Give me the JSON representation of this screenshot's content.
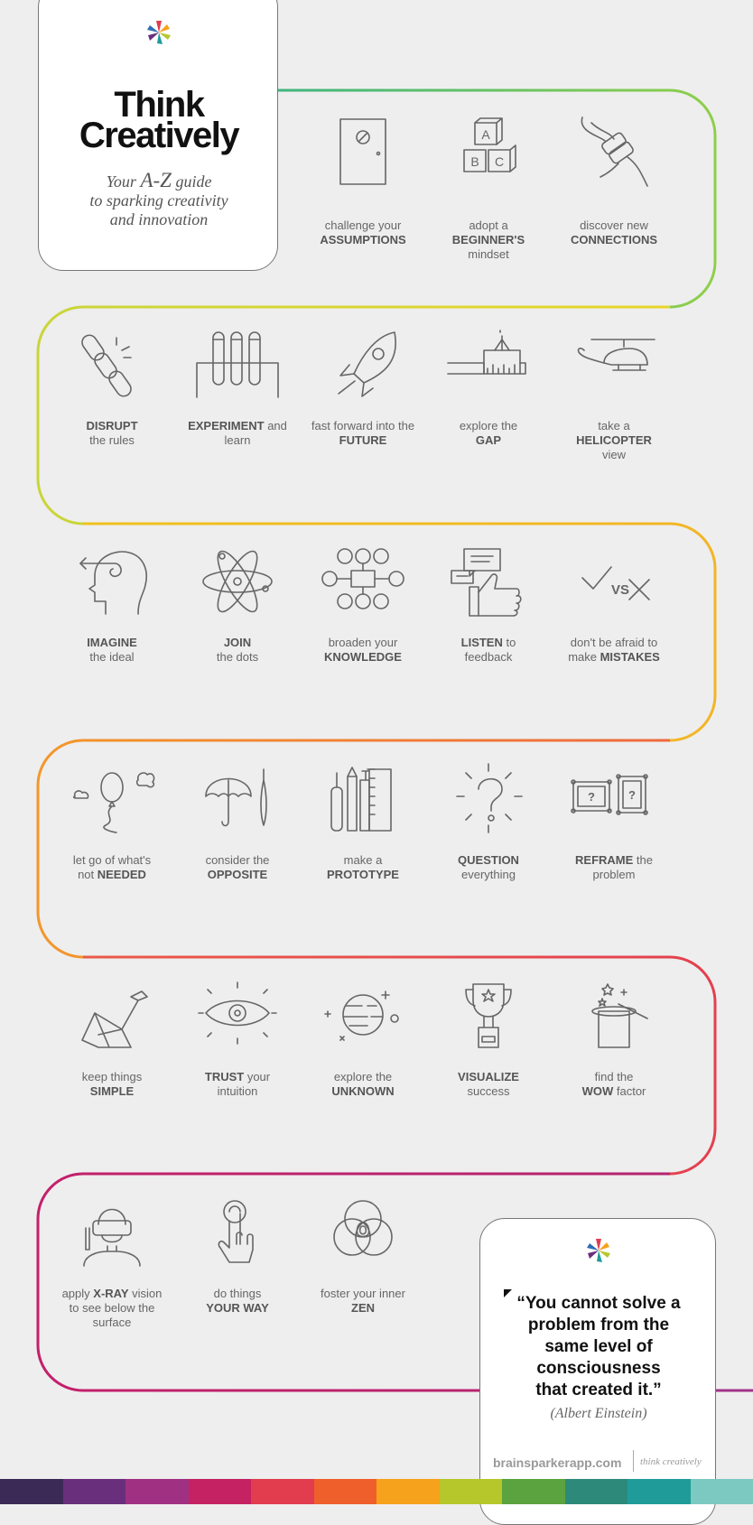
{
  "header": {
    "title_line1": "Think",
    "title_line2": "Creatively",
    "subtitle_pre": "Your",
    "subtitle_az": "A-Z",
    "subtitle_post": "guide",
    "subtitle_line2": "to sparking creativity",
    "subtitle_line3": "and innovation"
  },
  "items": [
    {
      "icon": "door-icon",
      "l1": [
        [
          "challenge your",
          ""
        ]
      ],
      "l2": [
        [
          "ASSUMPTIONS",
          "b"
        ]
      ],
      "l3": []
    },
    {
      "icon": "abc-blocks-icon",
      "l1": [
        [
          "adopt a",
          ""
        ]
      ],
      "l2": [
        [
          "BEGINNER'S",
          "b"
        ]
      ],
      "l3": [
        [
          "mindset",
          ""
        ]
      ]
    },
    {
      "icon": "cables-icon",
      "l1": [
        [
          "discover new",
          ""
        ]
      ],
      "l2": [
        [
          "CONNECTIONS",
          "b"
        ]
      ],
      "l3": []
    },
    {
      "icon": "broken-chain-icon",
      "l1": [
        [
          "DISRUPT",
          "b"
        ]
      ],
      "l2": [
        [
          "the rules",
          ""
        ]
      ],
      "l3": []
    },
    {
      "icon": "test-tubes-icon",
      "l1": [
        [
          "EXPERIMENT",
          "b"
        ],
        [
          " and",
          ""
        ]
      ],
      "l2": [
        [
          "learn",
          ""
        ]
      ],
      "l3": []
    },
    {
      "icon": "rocket-icon",
      "l1": [
        [
          "fast forward into the",
          ""
        ]
      ],
      "l2": [
        [
          "FUTURE",
          "b"
        ]
      ],
      "l3": []
    },
    {
      "icon": "ruler-gap-icon",
      "l1": [
        [
          "explore the",
          ""
        ]
      ],
      "l2": [
        [
          "GAP",
          "b"
        ]
      ],
      "l3": []
    },
    {
      "icon": "helicopter-icon",
      "l1": [
        [
          "take a",
          ""
        ]
      ],
      "l2": [
        [
          "HELICOPTER",
          "b"
        ]
      ],
      "l3": [
        [
          "view",
          ""
        ]
      ]
    },
    {
      "icon": "head-arrow-icon",
      "l1": [
        [
          "IMAGINE",
          "b"
        ]
      ],
      "l2": [
        [
          "the ideal",
          ""
        ]
      ],
      "l3": []
    },
    {
      "icon": "atom-icon",
      "l1": [
        [
          "JOIN",
          "b"
        ]
      ],
      "l2": [
        [
          "the dots",
          ""
        ]
      ],
      "l3": []
    },
    {
      "icon": "network-icon",
      "l1": [
        [
          "broaden your",
          ""
        ]
      ],
      "l2": [
        [
          "KNOWLEDGE",
          "b"
        ]
      ],
      "l3": []
    },
    {
      "icon": "thumbs-up-icon",
      "l1": [
        [
          "LISTEN",
          "b"
        ],
        [
          " to",
          ""
        ]
      ],
      "l2": [
        [
          "feedback",
          ""
        ]
      ],
      "l3": []
    },
    {
      "icon": "check-vs-cross-icon",
      "l1": [
        [
          "don't be afraid to",
          ""
        ]
      ],
      "l2": [
        [
          "make ",
          ""
        ],
        [
          "MISTAKES",
          "b"
        ]
      ],
      "l3": []
    },
    {
      "icon": "balloon-icon",
      "l1": [
        [
          "let go of what's",
          ""
        ]
      ],
      "l2": [
        [
          "not ",
          ""
        ],
        [
          "NEEDED",
          "b"
        ]
      ],
      "l3": []
    },
    {
      "icon": "umbrella-icon",
      "l1": [
        [
          "consider the",
          ""
        ]
      ],
      "l2": [
        [
          "OPPOSITE",
          "b"
        ]
      ],
      "l3": []
    },
    {
      "icon": "drawing-tools-icon",
      "l1": [
        [
          "make a",
          ""
        ]
      ],
      "l2": [
        [
          "PROTOTYPE",
          "b"
        ]
      ],
      "l3": []
    },
    {
      "icon": "question-mark-icon",
      "l1": [
        [
          "QUESTION",
          "b"
        ]
      ],
      "l2": [
        [
          "everything",
          ""
        ]
      ],
      "l3": []
    },
    {
      "icon": "picture-frames-icon",
      "l1": [
        [
          "REFRAME",
          "b"
        ],
        [
          " the",
          ""
        ]
      ],
      "l2": [
        [
          "problem",
          ""
        ]
      ],
      "l3": []
    },
    {
      "icon": "origami-swan-icon",
      "l1": [
        [
          "keep things",
          ""
        ]
      ],
      "l2": [
        [
          "SIMPLE",
          "b"
        ]
      ],
      "l3": []
    },
    {
      "icon": "eye-icon",
      "l1": [
        [
          "TRUST",
          "b"
        ],
        [
          " your",
          ""
        ]
      ],
      "l2": [
        [
          "intuition",
          ""
        ]
      ],
      "l3": []
    },
    {
      "icon": "planet-icon",
      "l1": [
        [
          "explore the",
          ""
        ]
      ],
      "l2": [
        [
          "UNKNOWN",
          "b"
        ]
      ],
      "l3": []
    },
    {
      "icon": "trophy-icon",
      "l1": [
        [
          "VISUALIZE",
          "b"
        ]
      ],
      "l2": [
        [
          "success",
          ""
        ]
      ],
      "l3": []
    },
    {
      "icon": "magic-hat-icon",
      "l1": [
        [
          "find the",
          ""
        ]
      ],
      "l2": [
        [
          "WOW",
          "b"
        ],
        [
          " factor",
          ""
        ]
      ],
      "l3": []
    },
    {
      "icon": "vr-headset-icon",
      "l1": [
        [
          "apply ",
          ""
        ],
        [
          "X-RAY",
          "b"
        ],
        [
          " vision",
          ""
        ]
      ],
      "l2": [
        [
          "to see below the",
          ""
        ]
      ],
      "l3": [
        [
          "surface",
          ""
        ]
      ]
    },
    {
      "icon": "finger-press-icon",
      "l1": [
        [
          "do things",
          ""
        ]
      ],
      "l2": [
        [
          "YOUR WAY",
          "b"
        ]
      ],
      "l3": []
    },
    {
      "icon": "zen-circles-icon",
      "l1": [
        [
          "foster your inner",
          ""
        ]
      ],
      "l2": [
        [
          "ZEN",
          "b"
        ]
      ],
      "l3": []
    }
  ],
  "quote": {
    "line1": "“You cannot solve a",
    "line2": "problem from the",
    "line3": "same level of",
    "line4": "consciousness",
    "line5": "that created it.”",
    "author": "(Albert Einstein)"
  },
  "footer": {
    "site": "brainsparkerapp.com",
    "tagline": "think creatively"
  },
  "colors": {
    "row1": "#3fb57d",
    "row2": "#c9d53a",
    "row3": "#f0c11e",
    "row4": "#f3972b",
    "row5": "#ea4a48",
    "row6": "#c41f6b",
    "footer": [
      "#3b2a55",
      "#6a2f7c",
      "#a03182",
      "#c42262",
      "#e23c4f",
      "#ef5f2c",
      "#f6a21c",
      "#b6c72b",
      "#5ba33e",
      "#2d8a7a",
      "#1f9c9a",
      "#7cc9c1"
    ]
  }
}
